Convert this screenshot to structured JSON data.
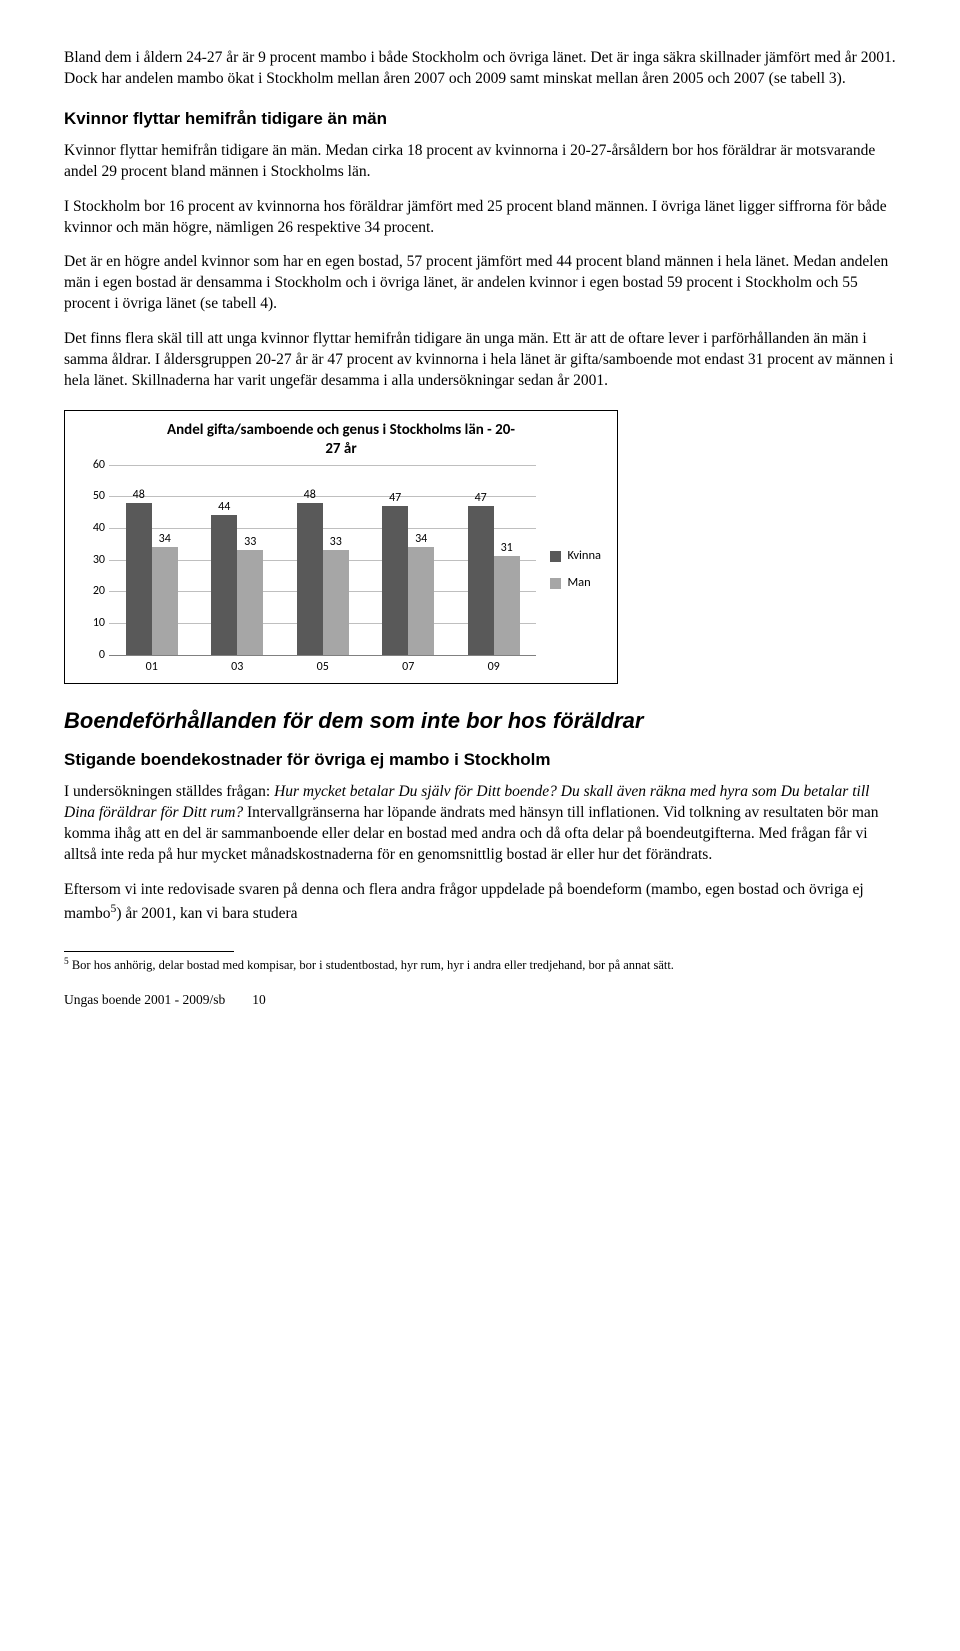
{
  "paragraphs": {
    "p1": "Bland dem i åldern 24-27 år är 9 procent mambo i både Stockholm och övriga länet. Det är inga säkra skillnader jämfört med år 2001. Dock har andelen mambo ökat i Stockholm mellan åren 2007 och 2009 samt minskat mellan åren 2005 och 2007 (se tabell 3).",
    "h_kvinnor": "Kvinnor flyttar hemifrån tidigare än män",
    "p2": "Kvinnor flyttar hemifrån tidigare än män. Medan cirka 18 procent av kvinnorna i 20-27-årsåldern bor hos föräldrar är motsvarande andel 29 procent bland männen i Stockholms län.",
    "p3": "I Stockholm bor 16 procent av kvinnorna hos föräldrar jämfört med 25 procent bland männen. I övriga länet ligger siffrorna för både kvinnor och män högre, nämligen 26 respektive 34 procent.",
    "p4": "Det är en högre andel kvinnor som har en egen bostad, 57 procent jämfört med 44 procent bland männen i hela länet. Medan andelen män i egen bostad är densamma i Stockholm och i övriga länet, är andelen kvinnor i egen bostad 59 procent i Stockholm och 55 procent i övriga länet (se tabell 4).",
    "p5": "Det finns flera skäl till att unga kvinnor flyttar hemifrån tidigare än unga män. Ett är att de oftare lever i parförhållanden än män i samma åldrar. I åldersgruppen 20-27 år är 47 procent av kvinnorna i hela länet är gifta/samboende mot endast 31 procent av männen i hela länet. Skillnaderna har varit ungefär desamma i alla undersökningar sedan år 2001.",
    "h_boende": "Boendeförhållanden för dem som inte bor hos föräldrar",
    "h_stigande": "Stigande boendekostnader för övriga ej mambo i Stockholm",
    "p6a": "I undersökningen ställdes frågan: ",
    "p6b": "Hur mycket betalar Du själv för Ditt boende? Du skall även räkna med hyra som Du betalar till Dina föräldrar för Ditt rum?",
    "p6c": " Intervallgränserna har löpande ändrats med hänsyn till inflationen. Vid tolkning av resultaten bör man komma ihåg att en del är sammanboende eller delar en bostad med andra och då ofta delar på boendeutgifterna. Med frågan får vi alltså inte reda på hur mycket månadskostnaderna för en genomsnittlig bostad är eller hur det förändrats.",
    "p7a": "Eftersom vi inte redovisade svaren på denna och flera andra frågor uppdelade på boendeform (mambo, egen bostad och övriga ej mambo",
    "p7b": ") år 2001, kan vi bara studera",
    "footnote_num": "5",
    "footnote_text": " Bor hos anhörig, delar bostad med kompisar, bor i studentbostad, hyr rum, hyr i andra eller tredjehand, bor på annat sätt.",
    "footer_left": "Ungas boende 2001 - 2009/sb",
    "footer_page": "10"
  },
  "chart": {
    "title_l1": "Andel gifta/samboende och genus i Stockholms län - 20-",
    "title_l2": "27 år",
    "categories": [
      "01",
      "03",
      "05",
      "07",
      "09"
    ],
    "series": [
      {
        "name": "Kvinna",
        "color": "#595959",
        "values": [
          48,
          44,
          48,
          47,
          47
        ]
      },
      {
        "name": "Man",
        "color": "#a6a6a6",
        "values": [
          34,
          33,
          33,
          34,
          31
        ]
      }
    ],
    "ymax": 60,
    "ytick_step": 10,
    "grid_color": "#bfbfbf",
    "axis_color": "#808080"
  }
}
